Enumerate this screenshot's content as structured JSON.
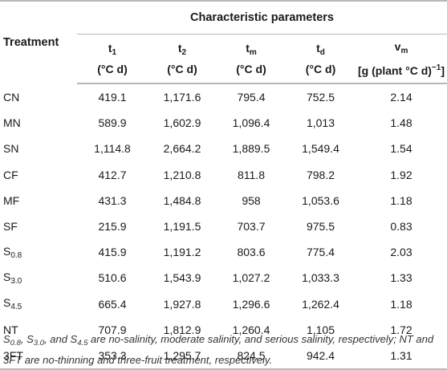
{
  "table": {
    "treatment_header": "Treatment",
    "group_header": "Characteristic parameters",
    "columns": [
      {
        "main": "t",
        "sub": "1",
        "unit": "(°C d)"
      },
      {
        "main": "t",
        "sub": "2",
        "unit": "(°C d)"
      },
      {
        "main": "t",
        "sub": "m",
        "unit": "(°C d)"
      },
      {
        "main": "t",
        "sub": "d",
        "unit": "(°C d)"
      },
      {
        "main": "v",
        "sub": "m",
        "unit_prefix": "[g (plant °C d)",
        "unit_sup": "−1",
        "unit_suffix": "]"
      }
    ],
    "rows": [
      {
        "name": "CN",
        "name_sub": "",
        "values": [
          "419.1",
          "1,171.6",
          "795.4",
          "752.5",
          "2.14"
        ]
      },
      {
        "name": "MN",
        "name_sub": "",
        "values": [
          "589.9",
          "1,602.9",
          "1,096.4",
          "1,013",
          "1.48"
        ]
      },
      {
        "name": "SN",
        "name_sub": "",
        "values": [
          "1,114.8",
          "2,664.2",
          "1,889.5",
          "1,549.4",
          "1.54"
        ]
      },
      {
        "name": "CF",
        "name_sub": "",
        "values": [
          "412.7",
          "1,210.8",
          "811.8",
          "798.2",
          "1.92"
        ]
      },
      {
        "name": "MF",
        "name_sub": "",
        "values": [
          "431.3",
          "1,484.8",
          "958",
          "1,053.6",
          "1.18"
        ]
      },
      {
        "name": "SF",
        "name_sub": "",
        "values": [
          "215.9",
          "1,191.5",
          "703.7",
          "975.5",
          "0.83"
        ]
      },
      {
        "name": "S",
        "name_sub": "0.8",
        "values": [
          "415.9",
          "1,191.2",
          "803.6",
          "775.4",
          "2.03"
        ]
      },
      {
        "name": "S",
        "name_sub": "3.0",
        "values": [
          "510.6",
          "1,543.9",
          "1,027.2",
          "1,033.3",
          "1.33"
        ]
      },
      {
        "name": "S",
        "name_sub": "4.5",
        "values": [
          "665.4",
          "1,927.8",
          "1,296.6",
          "1,262.4",
          "1.18"
        ]
      },
      {
        "name": "NT",
        "name_sub": "",
        "values": [
          "707.9",
          "1,812.9",
          "1,260.4",
          "1,105",
          "1.72"
        ]
      },
      {
        "name": "3FT",
        "name_sub": "",
        "values": [
          "353.3",
          "1,295.7",
          "824.5",
          "942.4",
          "1.31"
        ]
      }
    ]
  },
  "footnote": {
    "s": "S",
    "sub1": "0.8",
    "sep1": ", ",
    "sub2": "3.0",
    "sep2": ", and ",
    "sub3": "4.5",
    "text": " are no-salinity, moderate salinity, and serious salinity, respectively; NT and 3FT are no-thinning and three-fruit treatment, respectively."
  }
}
